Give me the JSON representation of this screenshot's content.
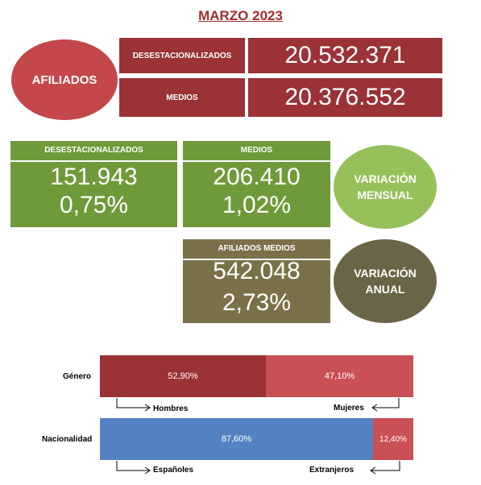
{
  "title": "MARZO 2023",
  "afiliados": {
    "oval_label": "AFILIADOS",
    "desestacionalizados_label": "DESESTACIONALIZADOS",
    "desestacionalizados_value": "20.532.371",
    "medios_label": "MEDIOS",
    "medios_value": "20.376.552"
  },
  "variacion_mensual": {
    "label_line1": "VARIACIÓN",
    "label_line2": "MENSUAL",
    "desestacionalizados": {
      "label": "DESESTACIONALIZADOS",
      "value": "151.943",
      "pct": "0,75%"
    },
    "medios": {
      "label": "MEDIOS",
      "value": "206.410",
      "pct": "1,02%"
    }
  },
  "variacion_anual": {
    "label_line1": "VARIACIÓN",
    "label_line2": "ANUAL",
    "afiliados_medios": {
      "label": "AFILIADOS MEDIOS",
      "value": "542.048",
      "pct": "2,73%"
    }
  },
  "chart_data": {
    "type": "bar",
    "stacked": true,
    "orientation": "horizontal",
    "categories": [
      "Género",
      "Nacionalidad"
    ],
    "rows": [
      {
        "label": "Género",
        "segments": [
          {
            "name": "Hombres",
            "value": 52.9,
            "display": "52,90%",
            "color": "#9a3236"
          },
          {
            "name": "Mujeres",
            "value": 47.1,
            "display": "47,10%",
            "color": "#c95055"
          }
        ]
      },
      {
        "label": "Nacionalidad",
        "segments": [
          {
            "name": "Españoles",
            "value": 87.6,
            "display": "87,60%",
            "color": "#5582c2"
          },
          {
            "name": "Extranjeros",
            "value": 12.4,
            "display": "12,40%",
            "color": "#c95055"
          }
        ]
      }
    ]
  }
}
